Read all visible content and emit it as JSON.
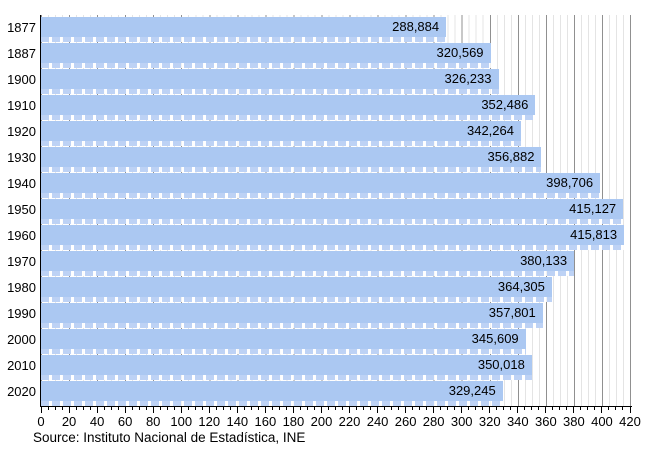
{
  "chart_data": {
    "type": "bar",
    "orientation": "horizontal",
    "title": "",
    "xlabel": "",
    "ylabel": "",
    "categories": [
      "1877",
      "1887",
      "1900",
      "1910",
      "1920",
      "1930",
      "1940",
      "1950",
      "1960",
      "1970",
      "1980",
      "1990",
      "2000",
      "2010",
      "2020"
    ],
    "values": [
      288884,
      320569,
      326233,
      352486,
      342264,
      356882,
      398706,
      415127,
      415813,
      380133,
      364305,
      357801,
      345609,
      350018,
      329245
    ],
    "value_label_format": "thousands-separated, shown inside bar end",
    "xlim": [
      0,
      420
    ],
    "x_axis_unit_scale": "axis in thousands (value / 1000)",
    "x_tick_labels": [
      "0",
      "20",
      "40",
      "60",
      "80",
      "100",
      "120",
      "140",
      "160",
      "180",
      "200",
      "220",
      "240",
      "260",
      "280",
      "300",
      "320",
      "340",
      "360",
      "380",
      "400",
      "420"
    ],
    "x_tick_step": 20,
    "x_minor_tick_step": 5,
    "grid": "vertical; faint line every 5 units, dark line every 20 units",
    "legend": "none"
  },
  "source_note": "Source: Instituto Nacional de Estadística, INE",
  "colors": {
    "bg": "#ffffff",
    "text": "#000000",
    "axis": "#000000",
    "bar": "#abc8f2",
    "bar_dash": "#bdd2f5",
    "dash_gap": "rgba(255,255,255,0.88)",
    "grid_major": "#909090",
    "grid_minor": "#e4e4e4"
  }
}
